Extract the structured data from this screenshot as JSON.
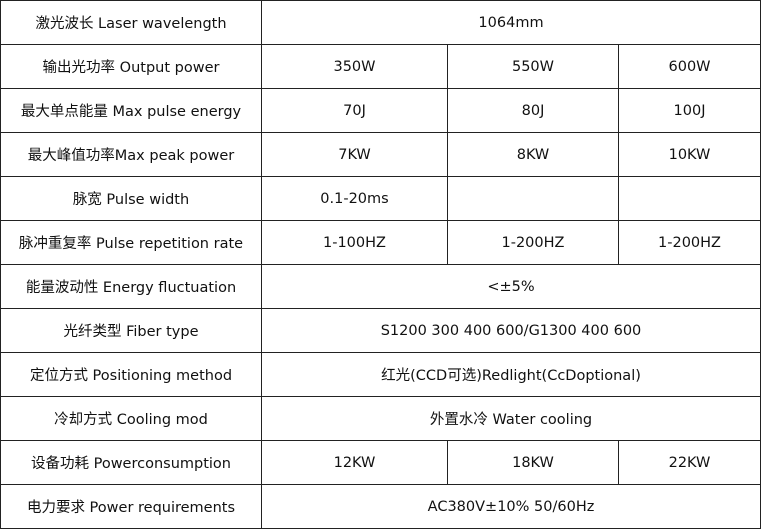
{
  "table": {
    "rows": [
      {
        "label": "激光波长 Laser wavelength",
        "values": [
          "1064mm"
        ]
      },
      {
        "label": "输出光功率 Output power",
        "values": [
          "350W",
          "550W",
          "600W"
        ]
      },
      {
        "label": "最大单点能量 Max pulse energy",
        "values": [
          "70J",
          "80J",
          "100J"
        ]
      },
      {
        "label": "最大峰值功率Max peak power",
        "values": [
          "7KW",
          "8KW",
          "10KW"
        ]
      },
      {
        "label": "脉宽 Pulse width",
        "values": [
          "0.1-20ms"
        ]
      },
      {
        "label": "脉冲重复率 Pulse repetition rate",
        "values": [
          "1-100HZ",
          "1-200HZ",
          "1-200HZ"
        ]
      },
      {
        "label": "能量波动性 Energy fluctuation",
        "values": [
          "<±5%"
        ]
      },
      {
        "label": "光纤类型 Fiber type",
        "values": [
          "S1200 300 400 600/G1300 400 600"
        ]
      },
      {
        "label": "定位方式 Positioning method",
        "values": [
          "红光(CCD可选)Redlight(CcDoptional)"
        ]
      },
      {
        "label": "冷却方式 Cooling mod",
        "values": [
          "外置水冷 Water cooling"
        ]
      },
      {
        "label": "设备功耗 Powerconsumption",
        "values": [
          "12KW",
          "18KW",
          "22KW"
        ]
      },
      {
        "label": "电力要求 Power requirements",
        "values": [
          "AC380V±10% 50/60Hz"
        ]
      }
    ]
  }
}
